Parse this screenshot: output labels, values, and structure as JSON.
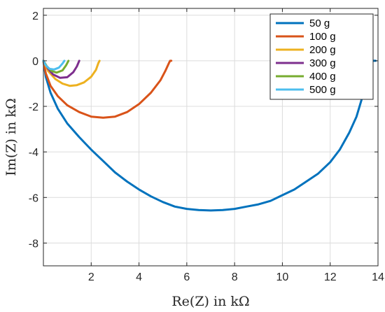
{
  "chart_data": {
    "type": "line",
    "xlabel": "Re(Z) in kΩ",
    "ylabel": "Im(Z) in kΩ",
    "xlim": [
      0,
      14
    ],
    "ylim": [
      -9,
      2.3
    ],
    "xticks": [
      2,
      4,
      6,
      8,
      10,
      12,
      14
    ],
    "xtick_labels": [
      "2",
      "4",
      "6",
      "8",
      "10",
      "12",
      "14"
    ],
    "yticks": [
      2,
      0,
      -2,
      -4,
      -6,
      -8
    ],
    "ytick_labels": [
      "2",
      "0",
      "-2",
      "-4",
      "-6",
      "-8"
    ],
    "grid": true,
    "legend_position": "top-right",
    "series": [
      {
        "name": "50 g",
        "color": "#0072BD",
        "x": [
          0.0,
          0.1,
          0.3,
          0.6,
          1.0,
          1.5,
          2.0,
          2.5,
          3.0,
          3.5,
          4.0,
          4.5,
          5.0,
          5.5,
          6.0,
          6.5,
          7.0,
          7.5,
          8.0,
          8.5,
          9.0,
          9.5,
          10.0,
          10.5,
          11.0,
          11.5,
          12.0,
          12.4,
          12.8,
          13.1,
          13.3,
          13.5,
          13.6,
          13.65,
          13.7,
          13.8,
          13.9
        ],
        "y": [
          0.0,
          -0.7,
          -1.4,
          -2.1,
          -2.75,
          -3.35,
          -3.9,
          -4.4,
          -4.9,
          -5.3,
          -5.65,
          -5.95,
          -6.2,
          -6.4,
          -6.5,
          -6.55,
          -6.57,
          -6.55,
          -6.5,
          -6.4,
          -6.3,
          -6.15,
          -5.9,
          -5.65,
          -5.3,
          -4.95,
          -4.45,
          -3.9,
          -3.15,
          -2.45,
          -1.75,
          -1.05,
          -0.45,
          -0.1,
          0.0,
          0.0,
          0.0
        ]
      },
      {
        "name": "100 g",
        "color": "#D95319",
        "x": [
          0.0,
          0.1,
          0.3,
          0.6,
          1.0,
          1.5,
          2.0,
          2.5,
          3.0,
          3.5,
          4.0,
          4.5,
          4.9,
          5.1,
          5.25,
          5.3,
          5.35
        ],
        "y": [
          0.0,
          -0.55,
          -1.1,
          -1.55,
          -1.95,
          -2.25,
          -2.45,
          -2.5,
          -2.45,
          -2.25,
          -1.9,
          -1.4,
          -0.85,
          -0.45,
          -0.1,
          0.0,
          0.0
        ]
      },
      {
        "name": "200 g",
        "color": "#EDB120",
        "x": [
          0.0,
          0.2,
          0.5,
          0.8,
          1.1,
          1.4,
          1.7,
          2.0,
          2.2,
          2.3,
          2.35
        ],
        "y": [
          0.0,
          -0.45,
          -0.8,
          -1.0,
          -1.1,
          -1.07,
          -0.95,
          -0.7,
          -0.4,
          -0.1,
          0.0
        ]
      },
      {
        "name": "300 g",
        "color": "#7E2F8E",
        "x": [
          0.0,
          0.2,
          0.4,
          0.7,
          1.0,
          1.25,
          1.4,
          1.5
        ],
        "y": [
          0.0,
          -0.35,
          -0.6,
          -0.75,
          -0.72,
          -0.5,
          -0.25,
          0.0
        ]
      },
      {
        "name": "400 g",
        "color": "#77AC30",
        "x": [
          0.0,
          0.15,
          0.35,
          0.55,
          0.8,
          0.95,
          1.05
        ],
        "y": [
          0.0,
          -0.25,
          -0.45,
          -0.52,
          -0.42,
          -0.2,
          0.0
        ]
      },
      {
        "name": "500 g",
        "color": "#4DBEEE",
        "x": [
          0.0,
          0.1,
          0.25,
          0.45,
          0.65,
          0.8,
          0.88
        ],
        "y": [
          0.0,
          -0.2,
          -0.35,
          -0.38,
          -0.3,
          -0.12,
          0.0
        ]
      }
    ]
  }
}
